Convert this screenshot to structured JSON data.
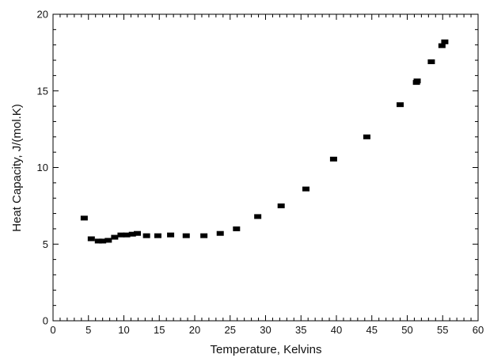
{
  "chart_data": {
    "type": "scatter",
    "xlabel": "Temperature,  Kelvins",
    "ylabel": "Heat Capacity,  J/(mol.K)",
    "xlim": [
      0,
      60
    ],
    "ylim": [
      0,
      20
    ],
    "x_ticks": [
      0,
      5,
      10,
      15,
      20,
      25,
      30,
      35,
      40,
      45,
      50,
      55,
      60
    ],
    "y_ticks": [
      0,
      5,
      10,
      15,
      20
    ],
    "grid": false,
    "marker": "square",
    "colors": {
      "marker": "#000000",
      "axis": "#000000",
      "background": "#ffffff"
    },
    "series": [
      {
        "x": [
          4.4,
          5.4,
          6.4,
          7.0,
          7.8,
          8.7,
          9.6,
          10.4,
          11.2,
          11.9,
          13.2,
          14.8,
          16.6,
          18.8,
          21.3,
          23.6,
          25.9,
          28.9,
          32.2,
          35.7,
          39.6,
          44.3,
          49.0,
          51.3,
          51.4,
          53.4,
          54.9,
          55.3
        ],
        "y": [
          6.7,
          5.35,
          5.2,
          5.2,
          5.25,
          5.45,
          5.6,
          5.6,
          5.65,
          5.7,
          5.55,
          5.55,
          5.6,
          5.55,
          5.55,
          5.7,
          6.0,
          6.8,
          7.5,
          8.6,
          10.55,
          12.0,
          14.1,
          15.55,
          15.65,
          16.9,
          17.95,
          18.2
        ]
      }
    ]
  }
}
